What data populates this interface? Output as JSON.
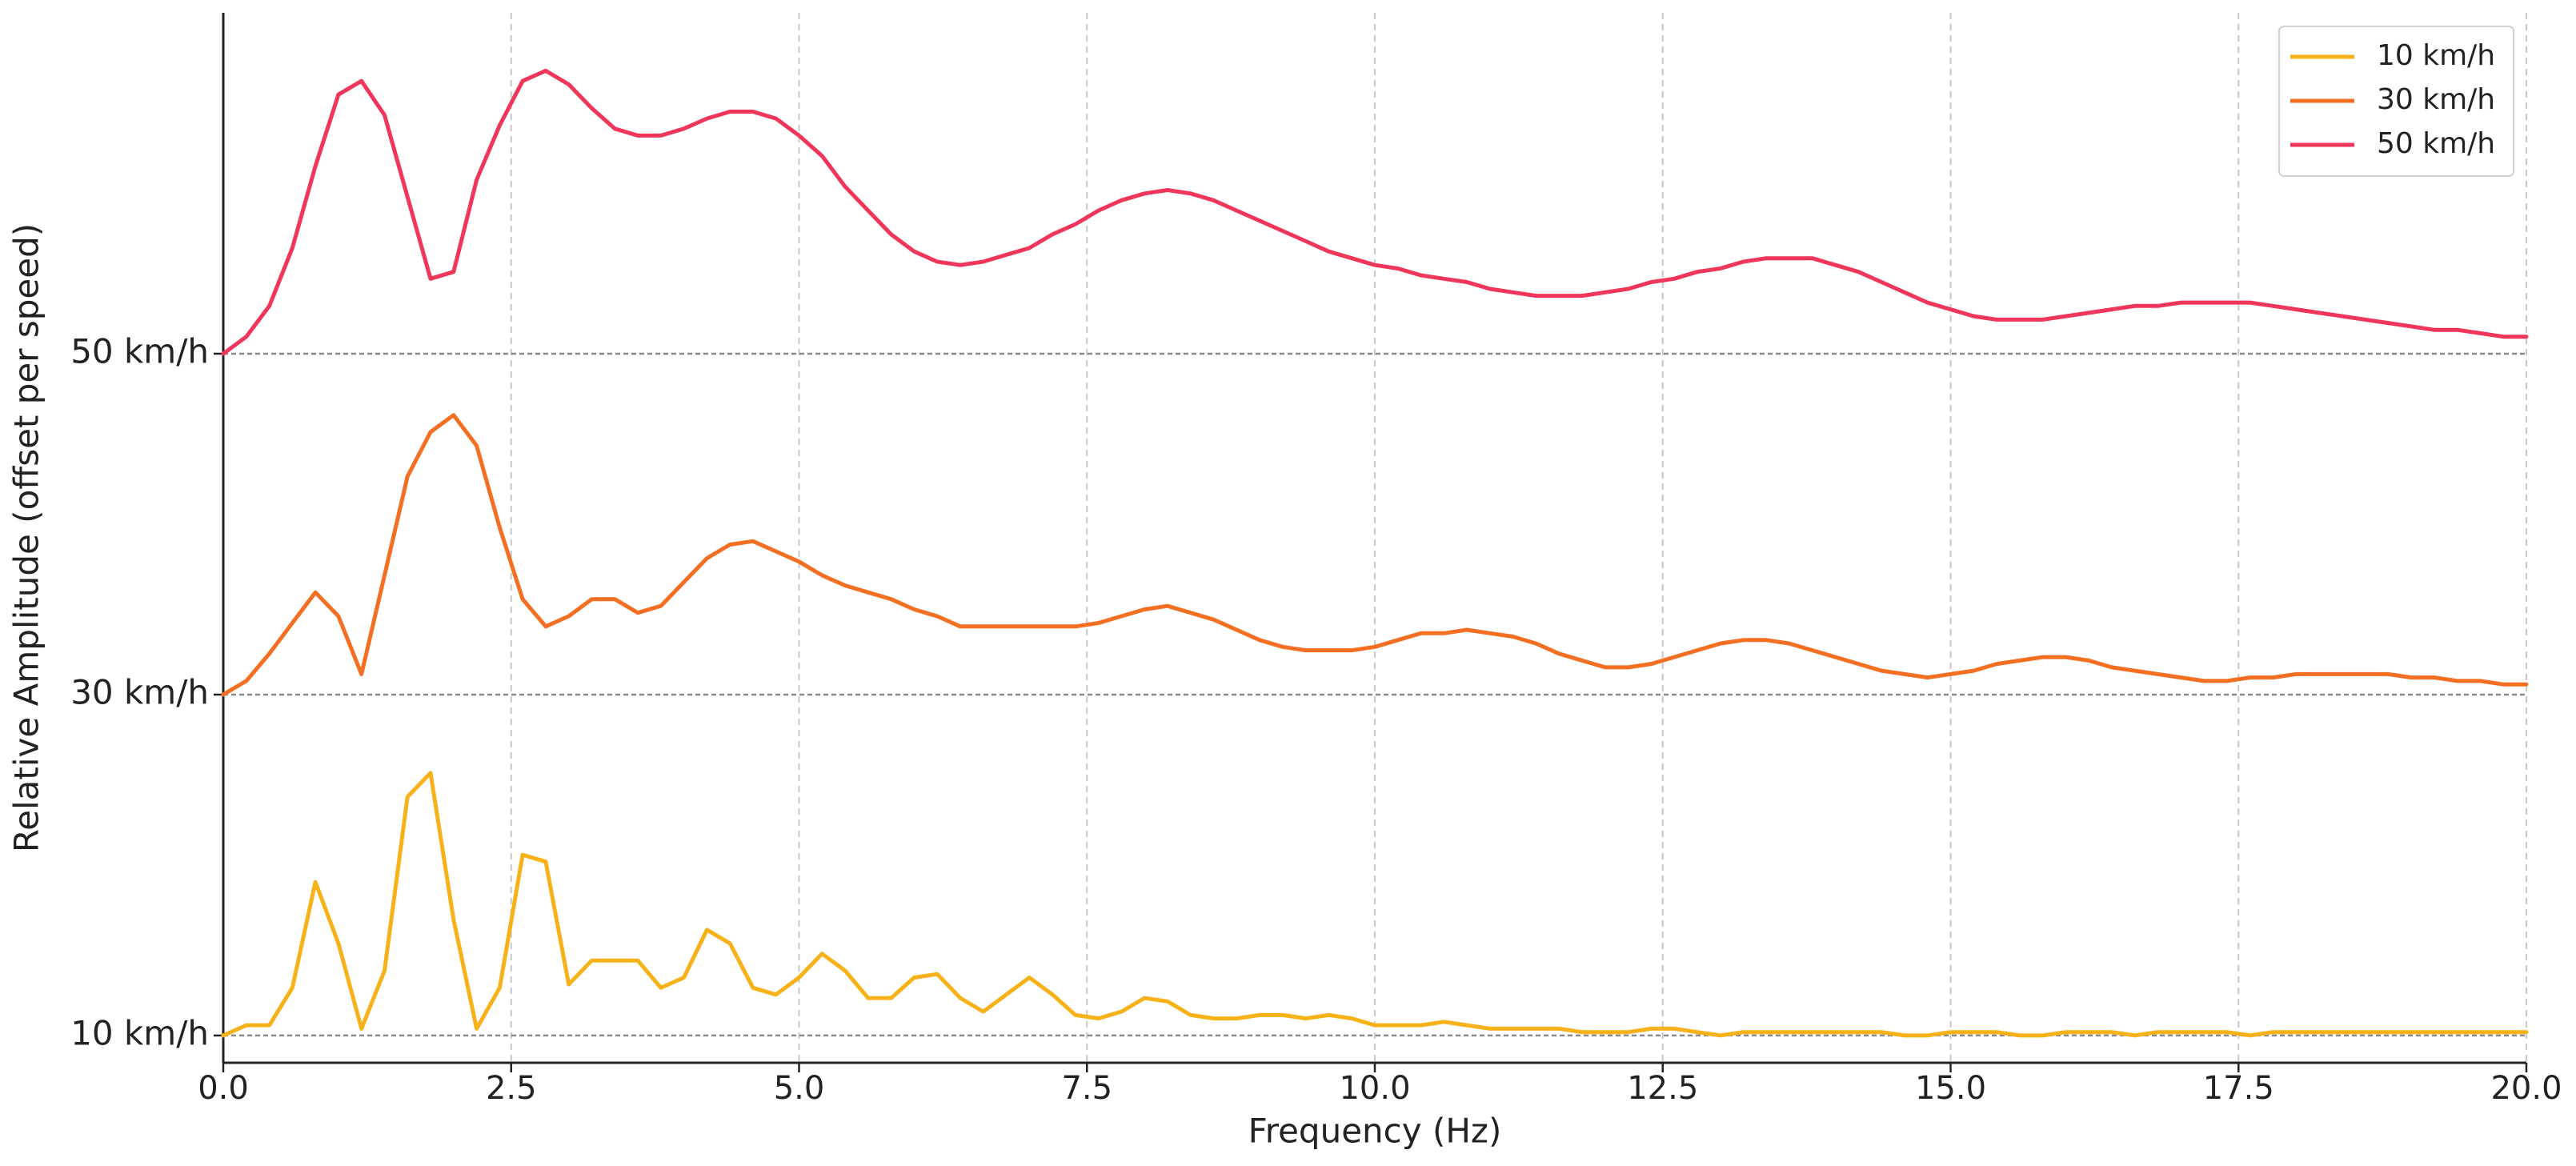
{
  "chart_data": {
    "type": "line",
    "x_label": "Frequency (Hz)",
    "y_label": "Relative Amplitude (offset per speed)",
    "x": [
      0,
      0.2,
      0.4,
      0.6,
      0.8,
      1.0,
      1.2,
      1.4,
      1.6,
      1.8,
      2.0,
      2.2,
      2.4,
      2.6,
      2.8,
      3.0,
      3.2,
      3.4,
      3.6,
      3.8,
      4.0,
      4.2,
      4.4,
      4.6,
      4.8,
      5.0,
      5.2,
      5.4,
      5.6,
      5.8,
      6.0,
      6.2,
      6.4,
      6.6,
      6.8,
      7.0,
      7.2,
      7.4,
      7.6,
      7.8,
      8.0,
      8.2,
      8.4,
      8.6,
      8.8,
      9.0,
      9.2,
      9.4,
      9.6,
      9.8,
      10.0,
      10.2,
      10.4,
      10.6,
      10.8,
      11.0,
      11.2,
      11.4,
      11.6,
      11.8,
      12.0,
      12.2,
      12.4,
      12.6,
      12.8,
      13.0,
      13.2,
      13.4,
      13.6,
      13.8,
      14.0,
      14.2,
      14.4,
      14.6,
      14.8,
      15.0,
      15.2,
      15.4,
      15.6,
      15.8,
      16.0,
      16.2,
      16.4,
      16.6,
      16.8,
      17.0,
      17.2,
      17.4,
      17.6,
      17.8,
      18.0,
      18.2,
      18.4,
      18.6,
      18.8,
      19.0,
      19.2,
      19.4,
      19.6,
      19.8,
      20.0
    ],
    "series": [
      {
        "name": "10 km/h",
        "color": "#f7b21a",
        "values": [
          0,
          0.03,
          0.03,
          0.14,
          0.45,
          0.27,
          0.02,
          0.19,
          0.7,
          0.77,
          0.34,
          0.02,
          0.14,
          0.53,
          0.51,
          0.15,
          0.22,
          0.22,
          0.22,
          0.14,
          0.17,
          0.31,
          0.27,
          0.14,
          0.12,
          0.17,
          0.24,
          0.19,
          0.11,
          0.11,
          0.17,
          0.18,
          0.11,
          0.07,
          0.12,
          0.17,
          0.12,
          0.06,
          0.05,
          0.07,
          0.11,
          0.1,
          0.06,
          0.05,
          0.05,
          0.06,
          0.06,
          0.05,
          0.06,
          0.05,
          0.03,
          0.03,
          0.03,
          0.04,
          0.03,
          0.02,
          0.02,
          0.02,
          0.02,
          0.01,
          0.01,
          0.01,
          0.02,
          0.02,
          0.01,
          0.0,
          0.01,
          0.01,
          0.01,
          0.01,
          0.01,
          0.01,
          0.01,
          0.0,
          0.0,
          0.01,
          0.01,
          0.01,
          0.0,
          0.0,
          0.01,
          0.01,
          0.01,
          0.0,
          0.01,
          0.01,
          0.01,
          0.01,
          0.0,
          0.01,
          0.01,
          0.01,
          0.01,
          0.01,
          0.01,
          0.01,
          0.01,
          0.01,
          0.01,
          0.01,
          0.01
        ]
      },
      {
        "name": "30 km/h",
        "color": "#f46f22",
        "values": [
          1.0,
          1.04,
          1.12,
          1.21,
          1.3,
          1.23,
          1.06,
          1.35,
          1.64,
          1.77,
          1.82,
          1.73,
          1.49,
          1.28,
          1.2,
          1.23,
          1.28,
          1.28,
          1.24,
          1.26,
          1.33,
          1.4,
          1.44,
          1.45,
          1.42,
          1.39,
          1.35,
          1.32,
          1.3,
          1.28,
          1.25,
          1.23,
          1.2,
          1.2,
          1.2,
          1.2,
          1.2,
          1.2,
          1.21,
          1.23,
          1.25,
          1.26,
          1.24,
          1.22,
          1.19,
          1.16,
          1.14,
          1.13,
          1.13,
          1.13,
          1.14,
          1.16,
          1.18,
          1.18,
          1.19,
          1.18,
          1.17,
          1.15,
          1.12,
          1.1,
          1.08,
          1.08,
          1.09,
          1.11,
          1.13,
          1.15,
          1.16,
          1.16,
          1.15,
          1.13,
          1.11,
          1.09,
          1.07,
          1.06,
          1.05,
          1.06,
          1.07,
          1.09,
          1.1,
          1.11,
          1.11,
          1.1,
          1.08,
          1.07,
          1.06,
          1.05,
          1.04,
          1.04,
          1.05,
          1.05,
          1.06,
          1.06,
          1.06,
          1.06,
          1.06,
          1.05,
          1.05,
          1.04,
          1.04,
          1.03,
          1.03
        ]
      },
      {
        "name": "50 km/h",
        "color": "#f0365a",
        "values": [
          2.0,
          2.05,
          2.14,
          2.31,
          2.55,
          2.76,
          2.8,
          2.7,
          2.46,
          2.22,
          2.24,
          2.51,
          2.67,
          2.8,
          2.83,
          2.79,
          2.72,
          2.66,
          2.64,
          2.64,
          2.66,
          2.69,
          2.71,
          2.71,
          2.69,
          2.64,
          2.58,
          2.49,
          2.42,
          2.35,
          2.3,
          2.27,
          2.26,
          2.27,
          2.29,
          2.31,
          2.35,
          2.38,
          2.42,
          2.45,
          2.47,
          2.48,
          2.47,
          2.45,
          2.42,
          2.39,
          2.36,
          2.33,
          2.3,
          2.28,
          2.26,
          2.25,
          2.23,
          2.22,
          2.21,
          2.19,
          2.18,
          2.17,
          2.17,
          2.17,
          2.18,
          2.19,
          2.21,
          2.22,
          2.24,
          2.25,
          2.27,
          2.28,
          2.28,
          2.28,
          2.26,
          2.24,
          2.21,
          2.18,
          2.15,
          2.13,
          2.11,
          2.1,
          2.1,
          2.1,
          2.11,
          2.12,
          2.13,
          2.14,
          2.14,
          2.15,
          2.15,
          2.15,
          2.15,
          2.14,
          2.13,
          2.12,
          2.11,
          2.1,
          2.09,
          2.08,
          2.07,
          2.07,
          2.06,
          2.05,
          2.05
        ]
      }
    ],
    "xlim": [
      0,
      20
    ],
    "xticks": [
      {
        "value": 0,
        "label": "0.0"
      },
      2.5,
      {
        "value": 5,
        "label": "5.0"
      },
      7.5,
      {
        "value": 10,
        "label": "10.0"
      },
      12.5,
      {
        "value": 15,
        "label": "15.0"
      },
      17.5,
      {
        "value": 20,
        "label": "20.0"
      }
    ],
    "ylim": [
      -0.08,
      3.0
    ],
    "yticks": [
      {
        "value": 0,
        "label": "10 km/h"
      },
      {
        "value": 1,
        "label": "30 km/h"
      },
      {
        "value": 2,
        "label": "50 km/h"
      }
    ],
    "x_grid": true,
    "y_grid": true,
    "legend": "upper right"
  }
}
